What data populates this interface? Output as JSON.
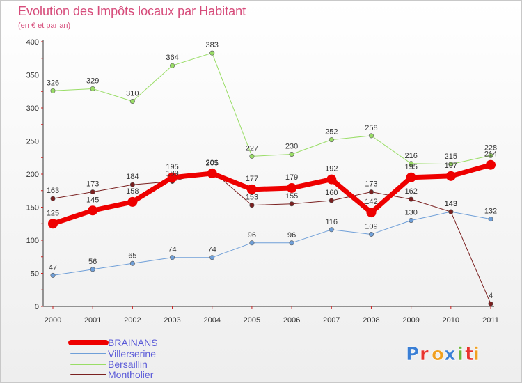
{
  "chart_data": {
    "type": "line",
    "title": "Evolution des Impôts locaux par Habitant",
    "subtitle": "(en € et par an)",
    "categories": [
      "2000",
      "2001",
      "2002",
      "2003",
      "2004",
      "2005",
      "2006",
      "2007",
      "2008",
      "2009",
      "2010",
      "2011"
    ],
    "ylim": [
      0,
      400
    ],
    "yticks": [
      0,
      50,
      100,
      150,
      200,
      250,
      300,
      350,
      400
    ],
    "series": [
      {
        "name": "Villerserine",
        "color": "#6f9fd8",
        "width": 1,
        "values": [
          47,
          56,
          65,
          74,
          74,
          96,
          96,
          116,
          109,
          130,
          143,
          132
        ]
      },
      {
        "name": "Bersaillin",
        "color": "#99dd66",
        "width": 1,
        "values": [
          326,
          329,
          310,
          364,
          383,
          227,
          230,
          252,
          258,
          216,
          215,
          228
        ]
      },
      {
        "name": "Montholier",
        "color": "#7a2020",
        "width": 1,
        "values": [
          163,
          173,
          184,
          189,
          205,
          153,
          155,
          160,
          173,
          162,
          143,
          4
        ]
      },
      {
        "name": "BRAINANS",
        "color": "#ee0000",
        "width": 7,
        "values": [
          125,
          145,
          158,
          195,
          201,
          177,
          179,
          192,
          142,
          195,
          197,
          214
        ]
      }
    ],
    "legend": [
      "BRAINANS",
      "Villerserine",
      "Bersaillin",
      "Montholier"
    ]
  },
  "logo": {
    "letters": [
      "P",
      "r",
      "o",
      "x",
      "i",
      "t",
      "i"
    ],
    "colors": [
      "#3a7fd5",
      "#e8342e",
      "#f0a020",
      "#3a7fd5",
      "#6bb83a",
      "#e8342e",
      "#f0a020"
    ]
  }
}
